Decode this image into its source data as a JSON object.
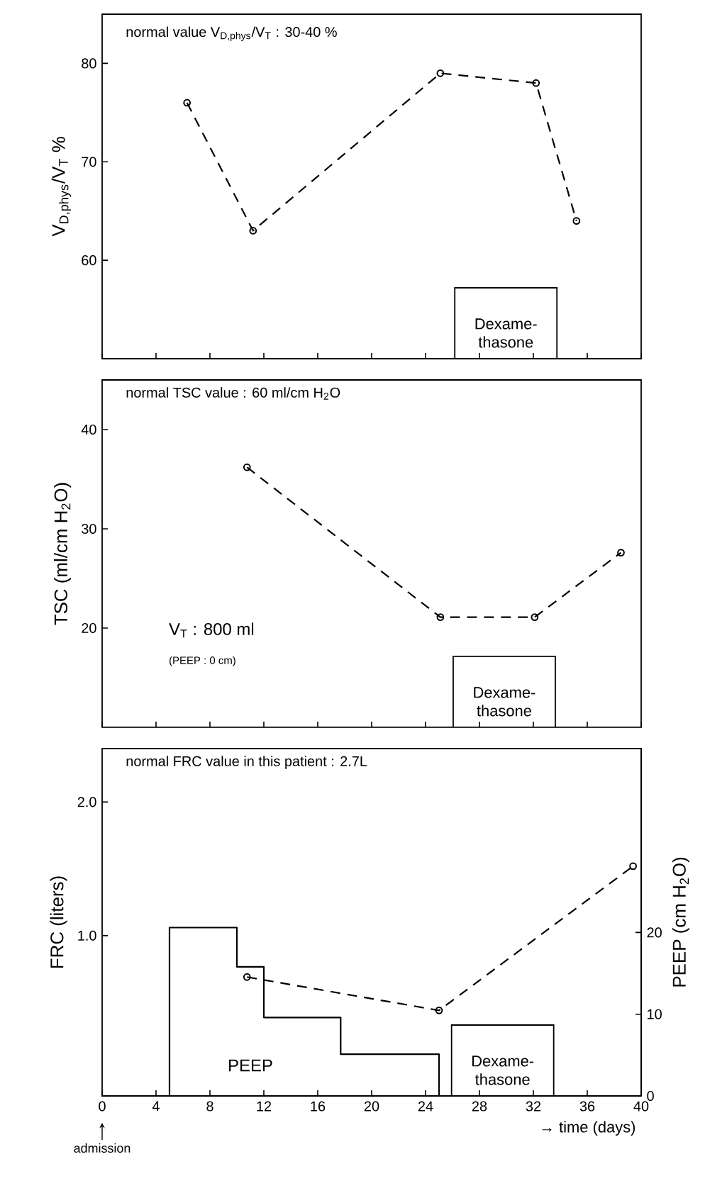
{
  "chart_data": [
    {
      "type": "line",
      "ylabel": "V$_{D,phys}$/V$_{T}$  %",
      "annotations": [
        "normal value V$_{D,phys}$/V$_{T}$ : 30-40 %",
        "Dexame-thasone"
      ],
      "x": [
        6.3,
        11.2,
        25.1,
        32.2,
        35.2
      ],
      "values": [
        76,
        63,
        79,
        78,
        64
      ],
      "xlim": [
        0,
        40
      ],
      "xticks": [
        0,
        4,
        8,
        12,
        16,
        20,
        24,
        28,
        32,
        36,
        40
      ],
      "ylim": [
        50,
        85
      ],
      "yticks": [
        60,
        70,
        80
      ],
      "tick_labels": "y",
      "marker": "circle",
      "line_style": "dashed"
    },
    {
      "type": "line",
      "ylabel": "TSC (ml/cm H$_{2}$O)",
      "annotations": [
        "normal TSC value : 60 ml/cm H$_{2}$O",
        "V$_{T}$ : 800 ml",
        "(PEEP : 0 cm)",
        "Dexame-thasone"
      ],
      "x": [
        10.75,
        25.1,
        32.1,
        38.5
      ],
      "values": [
        36.2,
        21.1,
        21.1,
        27.6
      ],
      "xlim": [
        0,
        40
      ],
      "xticks": [
        0,
        4,
        8,
        12,
        16,
        20,
        24,
        28,
        32,
        36,
        40
      ],
      "ylim": [
        10,
        45
      ],
      "yticks": [
        20,
        30,
        40
      ],
      "tick_labels": "y",
      "marker": "circle",
      "line_style": "dashed"
    },
    {
      "type": "line",
      "xlabel": "→ time (days)",
      "ylabel": "FRC (liters)",
      "y2label": "PEEP (cm H$_{2}$O)",
      "annotations": [
        "normal FRC value in this patient : 2.7L",
        "admission",
        "Dexame-thasone"
      ],
      "series": [
        {
          "x": [
            10.75,
            25.0,
            39.4
          ],
          "values": [
            0.69,
            0.44,
            1.52
          ]
        },
        {
          "name": "PEEP",
          "type": "step",
          "axis": "y2",
          "marker": "none",
          "line_style": "solid",
          "x": [
            5,
            5,
            10,
            12,
            17.7,
            25
          ],
          "values": [
            0,
            20.6,
            15.8,
            9.6,
            5.1,
            0
          ]
        }
      ],
      "xlim": [
        0,
        40
      ],
      "xticks": [
        0,
        4,
        8,
        12,
        16,
        20,
        24,
        28,
        32,
        36,
        40
      ],
      "ylim": [
        -0.2,
        2.4
      ],
      "yticks": [
        {
          "value": 1,
          "label": "1.0"
        },
        {
          "value": 2,
          "label": "2.0"
        }
      ],
      "y2lim": [
        0,
        42.5
      ],
      "y2ticks": [
        0,
        10,
        20
      ],
      "marker": "circle",
      "line_style": "dashed"
    }
  ]
}
